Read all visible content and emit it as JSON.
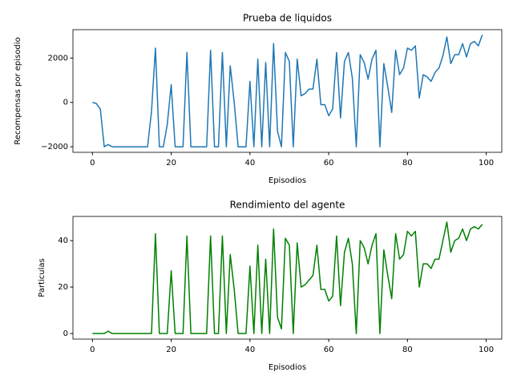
{
  "chart_data": [
    {
      "type": "line",
      "title": "Prueba de liquidos",
      "xlabel": "Episodios",
      "ylabel": "Recompensas por episodio",
      "x": [
        0,
        1,
        2,
        3,
        4,
        5,
        6,
        7,
        8,
        9,
        10,
        11,
        12,
        13,
        14,
        15,
        16,
        17,
        18,
        19,
        20,
        21,
        22,
        23,
        24,
        25,
        26,
        27,
        28,
        29,
        30,
        31,
        32,
        33,
        34,
        35,
        36,
        37,
        38,
        39,
        40,
        41,
        42,
        43,
        44,
        45,
        46,
        47,
        48,
        49,
        50,
        51,
        52,
        53,
        54,
        55,
        56,
        57,
        58,
        59,
        60,
        61,
        62,
        63,
        64,
        65,
        66,
        67,
        68,
        69,
        70,
        71,
        72,
        73,
        74,
        75,
        76,
        77,
        78,
        79,
        80,
        81,
        82,
        83,
        84,
        85,
        86,
        87,
        88,
        89,
        90,
        91,
        92,
        93,
        94,
        95,
        96,
        97,
        98,
        99
      ],
      "series": [
        {
          "color": "#1f77b4",
          "values": [
            0,
            -50,
            -300,
            -2000,
            -1900,
            -2000,
            -2000,
            -2000,
            -2000,
            -2000,
            -2000,
            -2000,
            -2000,
            -2000,
            -2000,
            -400,
            2450,
            -2000,
            -2000,
            -1000,
            800,
            -2000,
            -2000,
            -2000,
            2250,
            -2000,
            -2000,
            -2000,
            -2000,
            -2000,
            2350,
            -2000,
            -2000,
            2250,
            -2000,
            1650,
            0,
            -2000,
            -2000,
            -2000,
            950,
            -2000,
            1950,
            -2000,
            1800,
            -2000,
            2650,
            -1300,
            -2000,
            2250,
            1850,
            -2000,
            1950,
            300,
            400,
            600,
            600,
            1950,
            -100,
            -100,
            -600,
            -300,
            2250,
            -700,
            1850,
            2250,
            1100,
            -2000,
            2150,
            1800,
            1050,
            1950,
            2350,
            -2000,
            1750,
            700,
            -450,
            2350,
            1250,
            1550,
            2450,
            2350,
            2550,
            200,
            1250,
            1150,
            950,
            1350,
            1550,
            2100,
            2950,
            1750,
            2150,
            2150,
            2650,
            2050,
            2650,
            2750,
            2550,
            3050
          ]
        }
      ],
      "xlim": [
        -4.95,
        103.95
      ],
      "xticks": [
        0,
        20,
        40,
        60,
        80,
        100
      ],
      "ylim": [
        -2250,
        3280
      ],
      "yticks": [
        {
          "value": -2000,
          "label": "−2000"
        },
        0,
        2000
      ]
    },
    {
      "type": "line",
      "title": "Rendimiento del agente",
      "xlabel": "Episodios",
      "ylabel": "Particulas",
      "x": [
        0,
        1,
        2,
        3,
        4,
        5,
        6,
        7,
        8,
        9,
        10,
        11,
        12,
        13,
        14,
        15,
        16,
        17,
        18,
        19,
        20,
        21,
        22,
        23,
        24,
        25,
        26,
        27,
        28,
        29,
        30,
        31,
        32,
        33,
        34,
        35,
        36,
        37,
        38,
        39,
        40,
        41,
        42,
        43,
        44,
        45,
        46,
        47,
        48,
        49,
        50,
        51,
        52,
        53,
        54,
        55,
        56,
        57,
        58,
        59,
        60,
        61,
        62,
        63,
        64,
        65,
        66,
        67,
        68,
        69,
        70,
        71,
        72,
        73,
        74,
        75,
        76,
        77,
        78,
        79,
        80,
        81,
        82,
        83,
        84,
        85,
        86,
        87,
        88,
        89,
        90,
        91,
        92,
        93,
        94,
        95,
        96,
        97,
        98,
        99
      ],
      "series": [
        {
          "color": "#008000",
          "values": [
            0,
            0,
            0,
            0,
            1,
            0,
            0,
            0,
            0,
            0,
            0,
            0,
            0,
            0,
            0,
            0,
            43,
            0,
            0,
            0,
            27,
            0,
            0,
            0,
            42,
            0,
            0,
            0,
            0,
            0,
            42,
            0,
            0,
            42,
            0,
            34,
            19,
            0,
            0,
            0,
            29,
            0,
            38,
            0,
            32,
            0,
            45,
            7,
            2,
            41,
            38,
            0,
            39,
            20,
            21,
            23,
            25,
            38,
            19,
            19,
            14,
            16,
            42,
            12,
            35,
            41,
            30,
            0,
            40,
            37,
            30,
            38,
            43,
            0,
            36,
            25,
            15,
            43,
            32,
            34,
            44,
            42,
            44,
            20,
            30,
            30,
            28,
            32,
            32,
            40,
            48,
            35,
            40,
            41,
            45,
            40,
            45,
            46,
            45,
            47
          ]
        }
      ],
      "xlim": [
        -4.95,
        103.95
      ],
      "xticks": [
        0,
        20,
        40,
        60,
        80,
        100
      ],
      "ylim": [
        -2.4,
        50.4
      ],
      "yticks": [
        0,
        20,
        40
      ]
    }
  ]
}
